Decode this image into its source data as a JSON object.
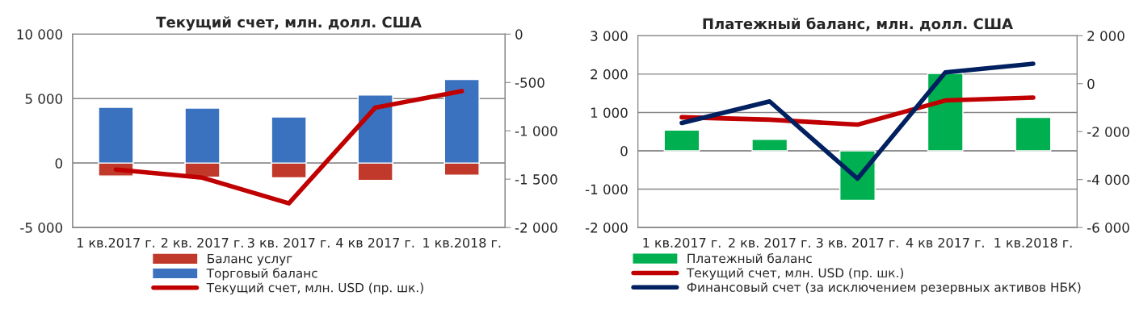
{
  "chart_data": [
    {
      "type": "bar",
      "title": "Текущий счет, млн. долл. США",
      "stacked": true,
      "categories": [
        "1 кв.2017 г.",
        "2 кв. 2017 г.",
        "3 кв. 2017 г.",
        "4 кв 2017 г.",
        "1 кв.2018 г."
      ],
      "series": [
        {
          "name": "Баланс услуг",
          "color": "#c0392b",
          "values": [
            -1000,
            -1100,
            -1150,
            -1350,
            -940
          ]
        },
        {
          "name": "Торговый баланс",
          "color": "#3a72c0",
          "values": [
            4320,
            4260,
            3580,
            5280,
            6480
          ]
        },
        {
          "name": "Текущий счет, млн. USD (пр. шк.)",
          "type": "line",
          "axis": "y2",
          "color": "#c00000",
          "values": [
            -1400,
            -1485,
            -1750,
            -760,
            -590
          ]
        }
      ],
      "ylim": [
        -5000,
        10000
      ],
      "yticks": [
        {
          "value": -5000,
          "label": "-5 000"
        },
        0,
        {
          "value": 5000,
          "label": "5 000"
        },
        {
          "value": 10000,
          "label": "10 000"
        }
      ],
      "y2lim": [
        -2000,
        0
      ],
      "y2ticks": [
        {
          "value": -2000,
          "label": "-2 000"
        },
        {
          "value": -1500,
          "label": "-1 500"
        },
        {
          "value": -1000,
          "label": "-1 000"
        },
        {
          "value": -500,
          "label": "-500"
        },
        0
      ],
      "grid": "y",
      "legend": "bottom"
    },
    {
      "type": "bar",
      "title": "Платежный баланс, млн. долл. США",
      "categories": [
        "1 кв.2017 г.",
        "2 кв. 2017 г.",
        "3 кв. 2017 г.",
        "4 кв 2017 г.",
        "1 кв.2018 г."
      ],
      "series": [
        {
          "name": "Платежный баланс",
          "color": "#00b050",
          "values": [
            540,
            300,
            -1290,
            2020,
            870
          ]
        },
        {
          "name": "Текущий счет, млн. USD (пр. шк.)",
          "type": "line",
          "axis": "y2",
          "color": "#c00000",
          "values": [
            -1400,
            -1500,
            -1710,
            -700,
            -580
          ]
        },
        {
          "name": "Финансовый счет (за исключением резервных активов НБК)",
          "type": "line",
          "axis": "y2",
          "color": "#002060",
          "values": [
            -1640,
            -740,
            -3960,
            470,
            830
          ]
        }
      ],
      "ylim": [
        -2000,
        3000
      ],
      "yticks": [
        {
          "value": -2000,
          "label": "-2 000"
        },
        {
          "value": -1000,
          "label": "-1 000"
        },
        0,
        {
          "value": 1000,
          "label": "1 000"
        },
        {
          "value": 2000,
          "label": "2 000"
        },
        {
          "value": 3000,
          "label": "3 000"
        }
      ],
      "y2lim": [
        -6000,
        2000
      ],
      "y2ticks": [
        {
          "value": -6000,
          "label": "-6 000"
        },
        {
          "value": -4000,
          "label": "-4 000"
        },
        {
          "value": -2000,
          "label": "-2 000"
        },
        0,
        {
          "value": 2000,
          "label": "2 000"
        }
      ],
      "grid": "y",
      "legend": "bottom"
    }
  ]
}
